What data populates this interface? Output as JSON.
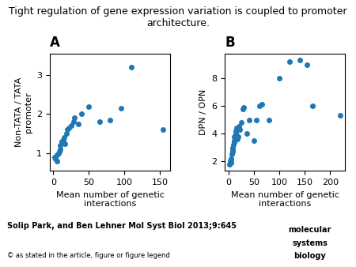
{
  "title": "Tight regulation of gene expression variation is coupled to promoter architecture.",
  "annotations": [
    "Solip Park, and Ben Lehner Mol Syst Biol 2013;9:645",
    "© as stated in the article, figure or figure legend",
    "molecular",
    "systems",
    "biology"
  ],
  "chart_data": [
    {
      "type": "scatter",
      "title": "A",
      "x_label": "Mean number of genetic\ninteractions",
      "y_label": "Non-TATA / TATA\npromoter",
      "xlim": [
        -5,
        165
      ],
      "ylim": [
        0.55,
        3.55
      ],
      "xticks": [
        0,
        50,
        100,
        150
      ],
      "yticks": [
        1,
        2,
        3
      ],
      "x": [
        2,
        3,
        5,
        5,
        7,
        8,
        10,
        10,
        12,
        14,
        15,
        16,
        18,
        20,
        22,
        25,
        28,
        30,
        35,
        40,
        50,
        65,
        80,
        95,
        110,
        155
      ],
      "values": [
        0.9,
        0.85,
        0.8,
        0.95,
        1.0,
        1.05,
        1.1,
        1.2,
        1.3,
        1.35,
        1.4,
        1.25,
        1.5,
        1.6,
        1.65,
        1.7,
        1.8,
        1.9,
        1.75,
        2.0,
        2.2,
        1.8,
        1.85,
        2.15,
        3.2,
        1.6
      ]
    },
    {
      "type": "scatter",
      "title": "B",
      "x_label": "Mean number of genetic\ninteractions",
      "y_label": "DPN / OPN",
      "xlim": [
        -8,
        230
      ],
      "ylim": [
        1.3,
        9.8
      ],
      "xticks": [
        0,
        50,
        100,
        150,
        200
      ],
      "yticks": [
        2,
        4,
        6,
        8
      ],
      "x": [
        2,
        3,
        4,
        5,
        5,
        6,
        7,
        8,
        8,
        9,
        10,
        10,
        11,
        12,
        13,
        14,
        15,
        16,
        17,
        18,
        20,
        22,
        25,
        28,
        30,
        35,
        40,
        50,
        55,
        60,
        65,
        80,
        100,
        120,
        140,
        155,
        165,
        220
      ],
      "values": [
        1.8,
        2.0,
        2.1,
        1.9,
        2.2,
        2.5,
        2.8,
        3.0,
        2.7,
        3.2,
        3.5,
        3.8,
        3.4,
        3.7,
        4.0,
        4.2,
        3.9,
        4.4,
        3.6,
        3.8,
        4.5,
        4.3,
        4.8,
        5.8,
        5.9,
        4.0,
        5.0,
        3.5,
        5.0,
        6.0,
        6.1,
        5.0,
        8.0,
        9.2,
        9.3,
        9.0,
        6.0,
        5.3
      ]
    }
  ]
}
